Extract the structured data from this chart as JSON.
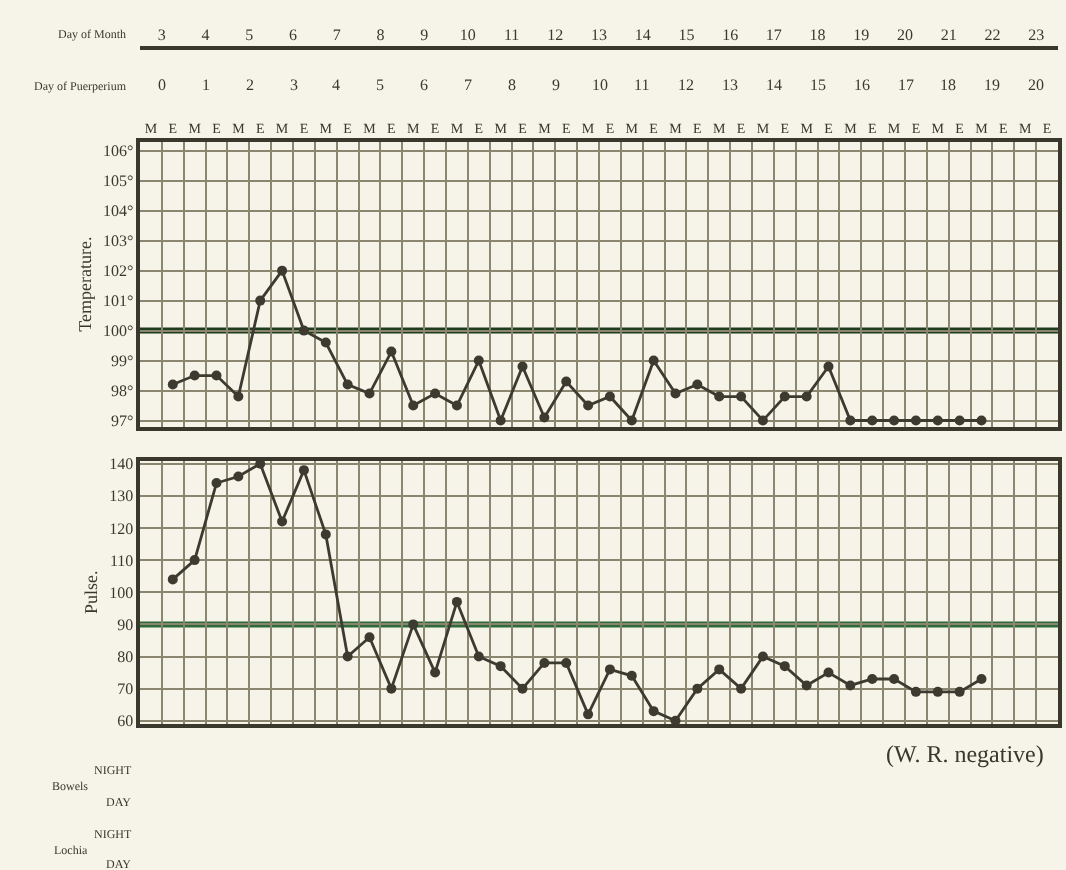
{
  "chart_data": [
    {
      "type": "line",
      "ylabel": "Temperature.",
      "x2label": "Day of Month",
      "categories": [
        "M",
        "E",
        "M",
        "E",
        "M",
        "E",
        "M",
        "E",
        "M",
        "E",
        "M",
        "E",
        "M",
        "E",
        "M",
        "E",
        "M",
        "E",
        "M",
        "E",
        "M",
        "E",
        "M",
        "E",
        "M",
        "E",
        "M",
        "E",
        "M",
        "E",
        "M",
        "E",
        "M",
        "E",
        "M",
        "E",
        "M",
        "E",
        "M",
        "E",
        "M",
        "E"
      ],
      "x2lim": [
        2.5,
        23.5
      ],
      "x2ticks": [
        3,
        4,
        5,
        6,
        7,
        8,
        9,
        10,
        11,
        12,
        13,
        14,
        15,
        16,
        17,
        18,
        19,
        20,
        21,
        22,
        23
      ],
      "annotations": [
        "Day of Puerperium",
        "0",
        "1",
        "2",
        "3",
        "4",
        "5",
        "6",
        "7",
        "8",
        "9",
        "10",
        "11",
        "12",
        "13",
        "14",
        "15",
        "16",
        "17",
        "18",
        "19",
        "20"
      ],
      "series": [
        {
          "color": "#3d3b30",
          "values": [
            null,
            98.2,
            98.5,
            98.5,
            97.8,
            101.0,
            102.0,
            100.0,
            99.6,
            98.2,
            97.9,
            99.3,
            97.5,
            97.9,
            97.5,
            99.0,
            97.0,
            98.8,
            97.1,
            98.3,
            97.5,
            97.8,
            97.0,
            99.0,
            97.9,
            98.2,
            97.8,
            97.8,
            97.0,
            97.8,
            97.8,
            98.8,
            97.0,
            97.0,
            97.0,
            97.0,
            97.0,
            97.0,
            97.0,
            null,
            null,
            null
          ]
        }
      ],
      "ylim": [
        96.8,
        106.3
      ],
      "yticks": [
        {
          "value": 97,
          "label": "97°"
        },
        {
          "value": 98,
          "label": "98°"
        },
        {
          "value": 99,
          "label": "99°"
        },
        {
          "value": 100,
          "label": "100°"
        },
        {
          "value": 101,
          "label": "101°"
        },
        {
          "value": 102,
          "label": "102°"
        },
        {
          "value": 103,
          "label": "103°"
        },
        {
          "value": 104,
          "label": "104°"
        },
        {
          "value": 105,
          "label": "105°"
        },
        {
          "value": 106,
          "label": "106°"
        }
      ],
      "grid": true,
      "marker": "circle",
      "line_style": "solid",
      "ref_lines": [
        {
          "axis": "y",
          "value": 100,
          "color": "#1e3d1e"
        }
      ]
    },
    {
      "type": "line",
      "ylabel": "Pulse.",
      "tick_labels": "y",
      "categories": [
        null,
        null,
        null,
        null,
        null,
        null,
        null,
        null,
        null,
        null,
        null,
        null,
        null,
        null,
        null,
        null,
        null,
        null,
        null,
        null,
        null,
        null,
        null,
        null,
        null,
        null,
        null,
        null,
        null,
        null,
        null,
        null,
        null,
        null,
        null,
        null,
        null,
        null,
        null,
        null,
        null,
        null
      ],
      "series": [
        {
          "color": "#3d3b30",
          "values": [
            null,
            104,
            110,
            134,
            136,
            140,
            122,
            138,
            118,
            80,
            86,
            70,
            90,
            75,
            97,
            80,
            77,
            70,
            78,
            78,
            62,
            76,
            74,
            63,
            60,
            70,
            76,
            70,
            80,
            77,
            71,
            75,
            71,
            73,
            73,
            69,
            69,
            69,
            73,
            null,
            null,
            null
          ]
        }
      ],
      "ylim": [
        59,
        141
      ],
      "yticks": [
        60,
        70,
        80,
        90,
        100,
        110,
        120,
        130,
        140
      ],
      "grid": true,
      "marker": "circle",
      "line_style": "solid",
      "ref_lines": [
        {
          "axis": "y",
          "value": 90,
          "color": "#2e6b3a"
        }
      ],
      "annotations": [
        "(W. R. negative)",
        "Bowels",
        "NIGHT",
        "DAY",
        "Lochia",
        "NIGHT",
        "DAY"
      ]
    }
  ]
}
